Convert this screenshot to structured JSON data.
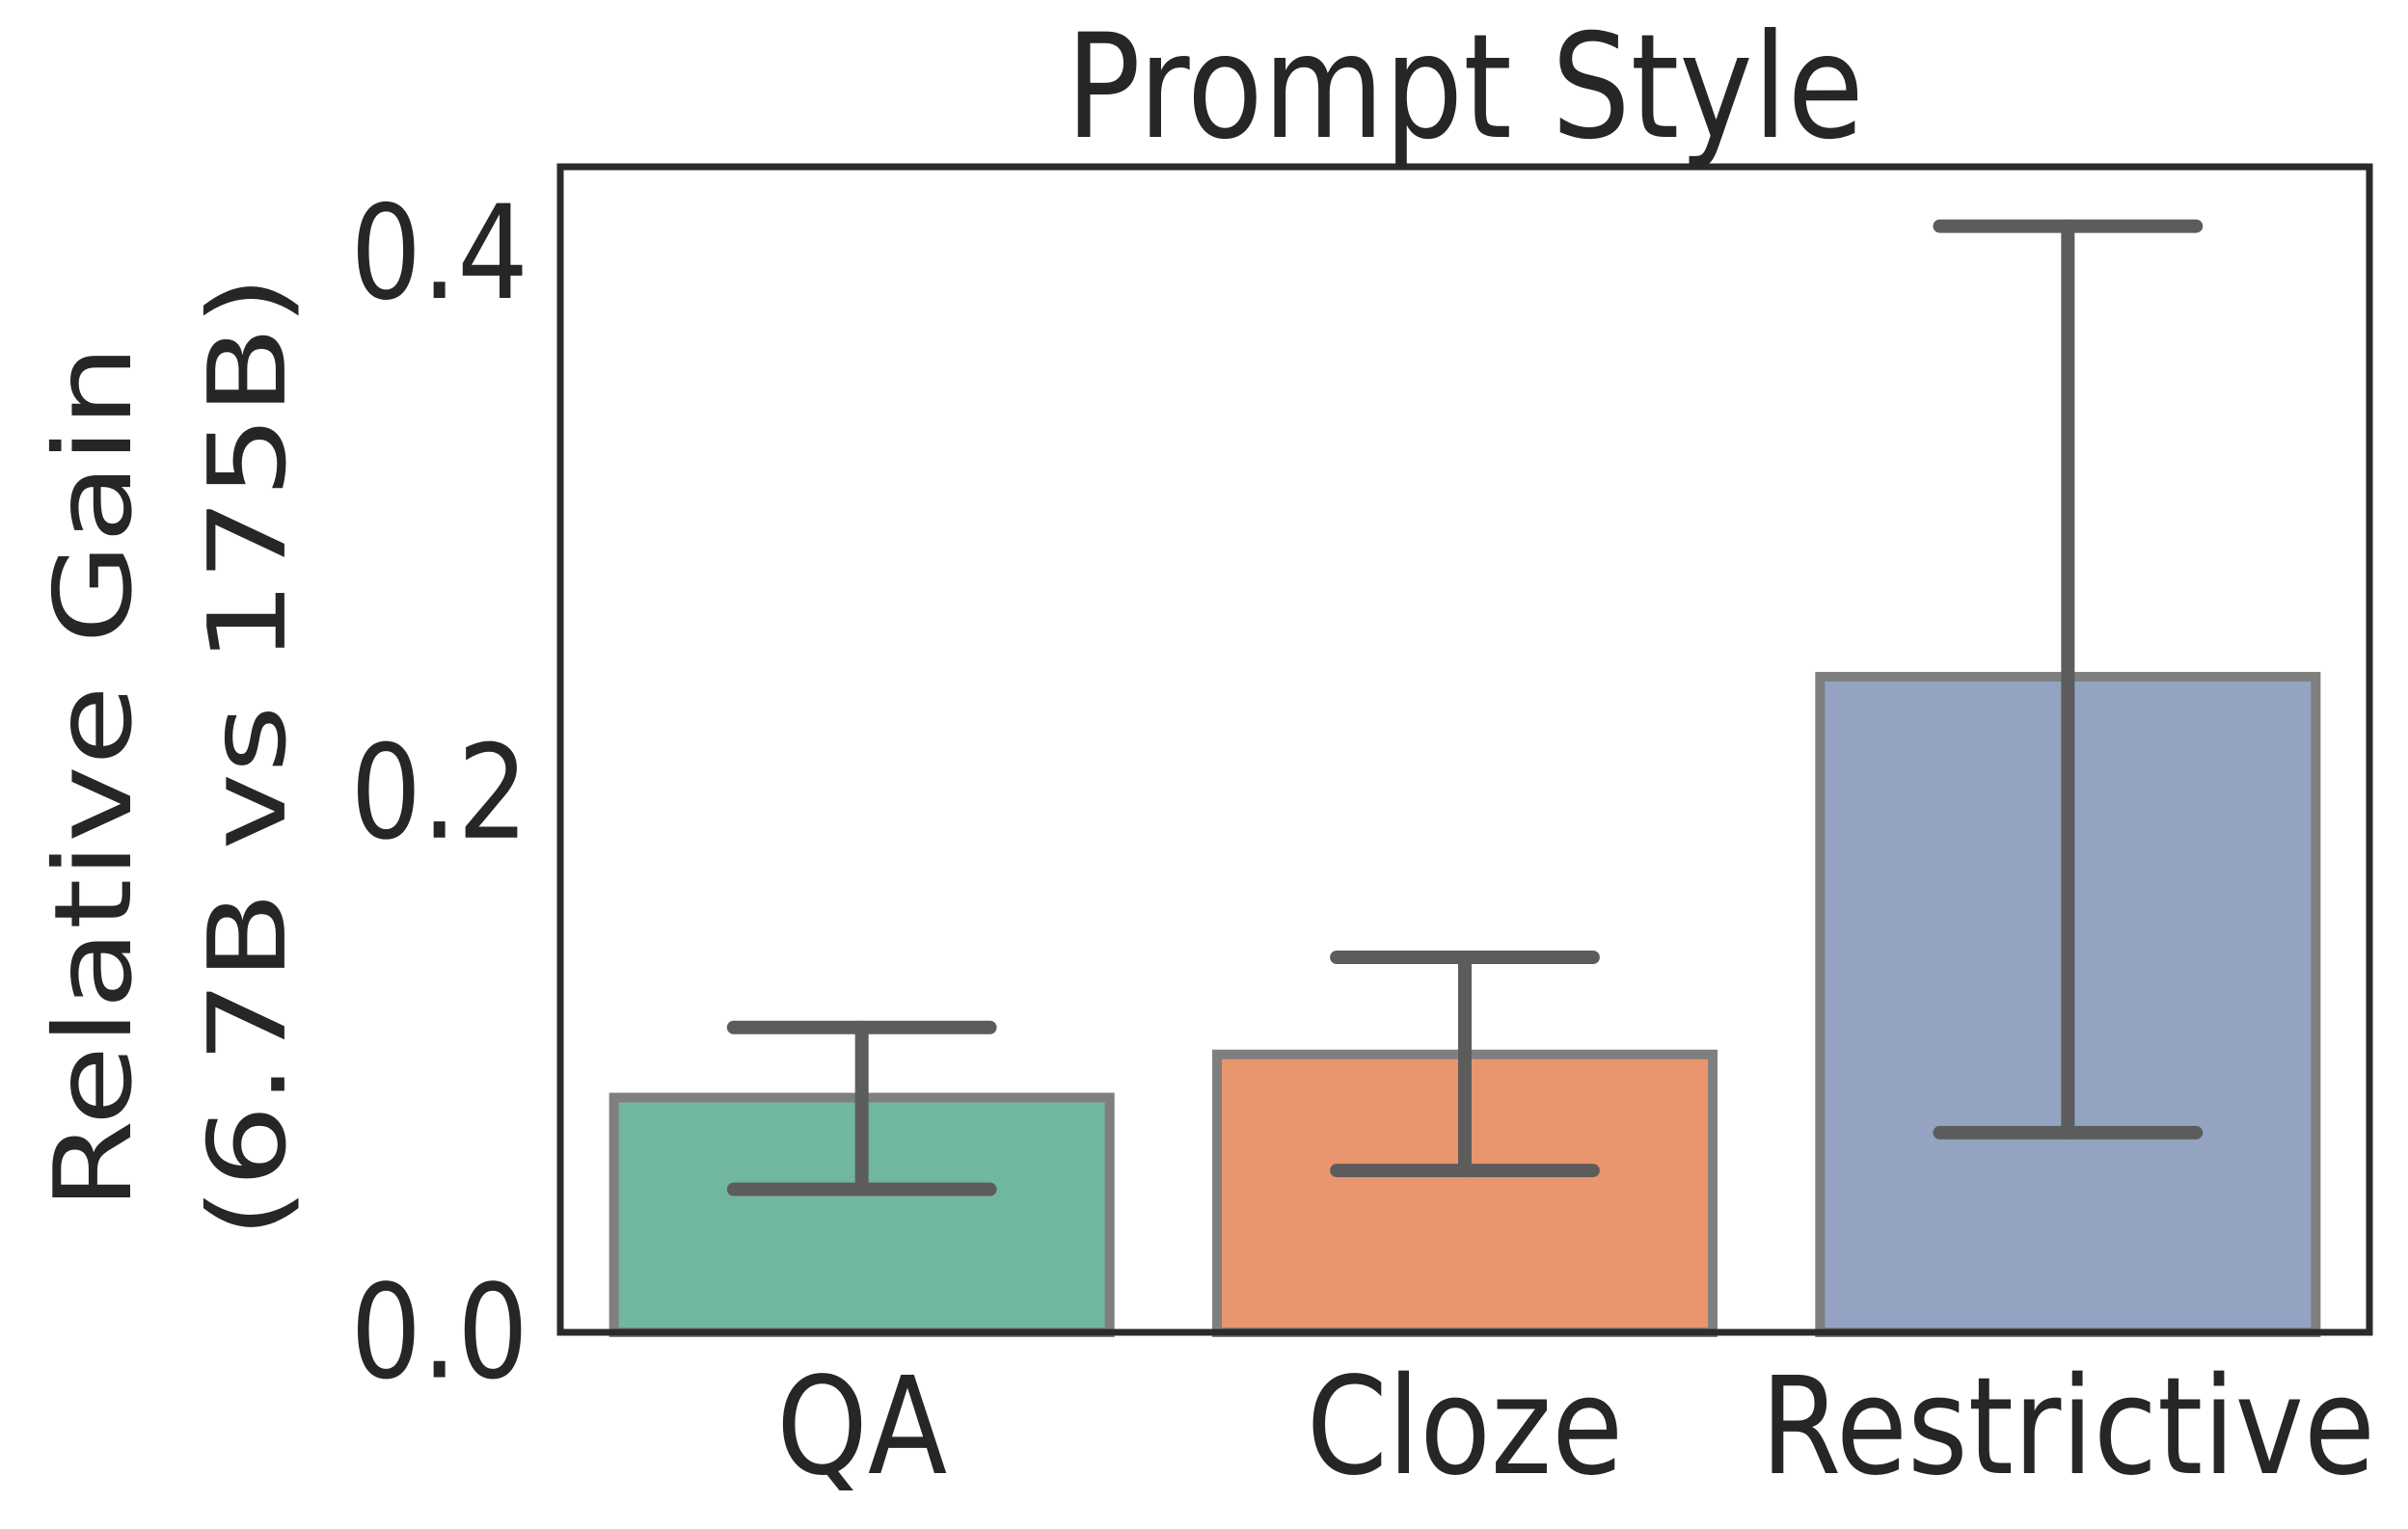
{
  "chart_data": {
    "type": "bar",
    "title": "Prompt Style",
    "xlabel": "",
    "ylabel": "Relative Gain (6.7B vs 175B)",
    "ylabel_lines": [
      "Relative Gain",
      "(6.7B vs 175B)"
    ],
    "categories": [
      "QA",
      "Cloze",
      "Restrictive"
    ],
    "values": [
      0.087,
      0.103,
      0.243
    ],
    "error_low": [
      0.053,
      0.06,
      0.074
    ],
    "error_high": [
      0.113,
      0.139,
      0.41
    ],
    "yticks": [
      0.0,
      0.2,
      0.4
    ],
    "ytick_labels": [
      "0.0",
      "0.2",
      "0.4"
    ],
    "ylim": [
      0,
      0.432
    ],
    "grid": false,
    "legend": false,
    "bar_colors": [
      "#71b6a0",
      "#e9966f",
      "#94a3c2"
    ],
    "bar_edge_color": "#7f7f7f",
    "error_bar_color": "#5c5c5c",
    "axis_color": "#2a2a2a",
    "text_color": "#262626",
    "background_color": "#ffffff"
  }
}
